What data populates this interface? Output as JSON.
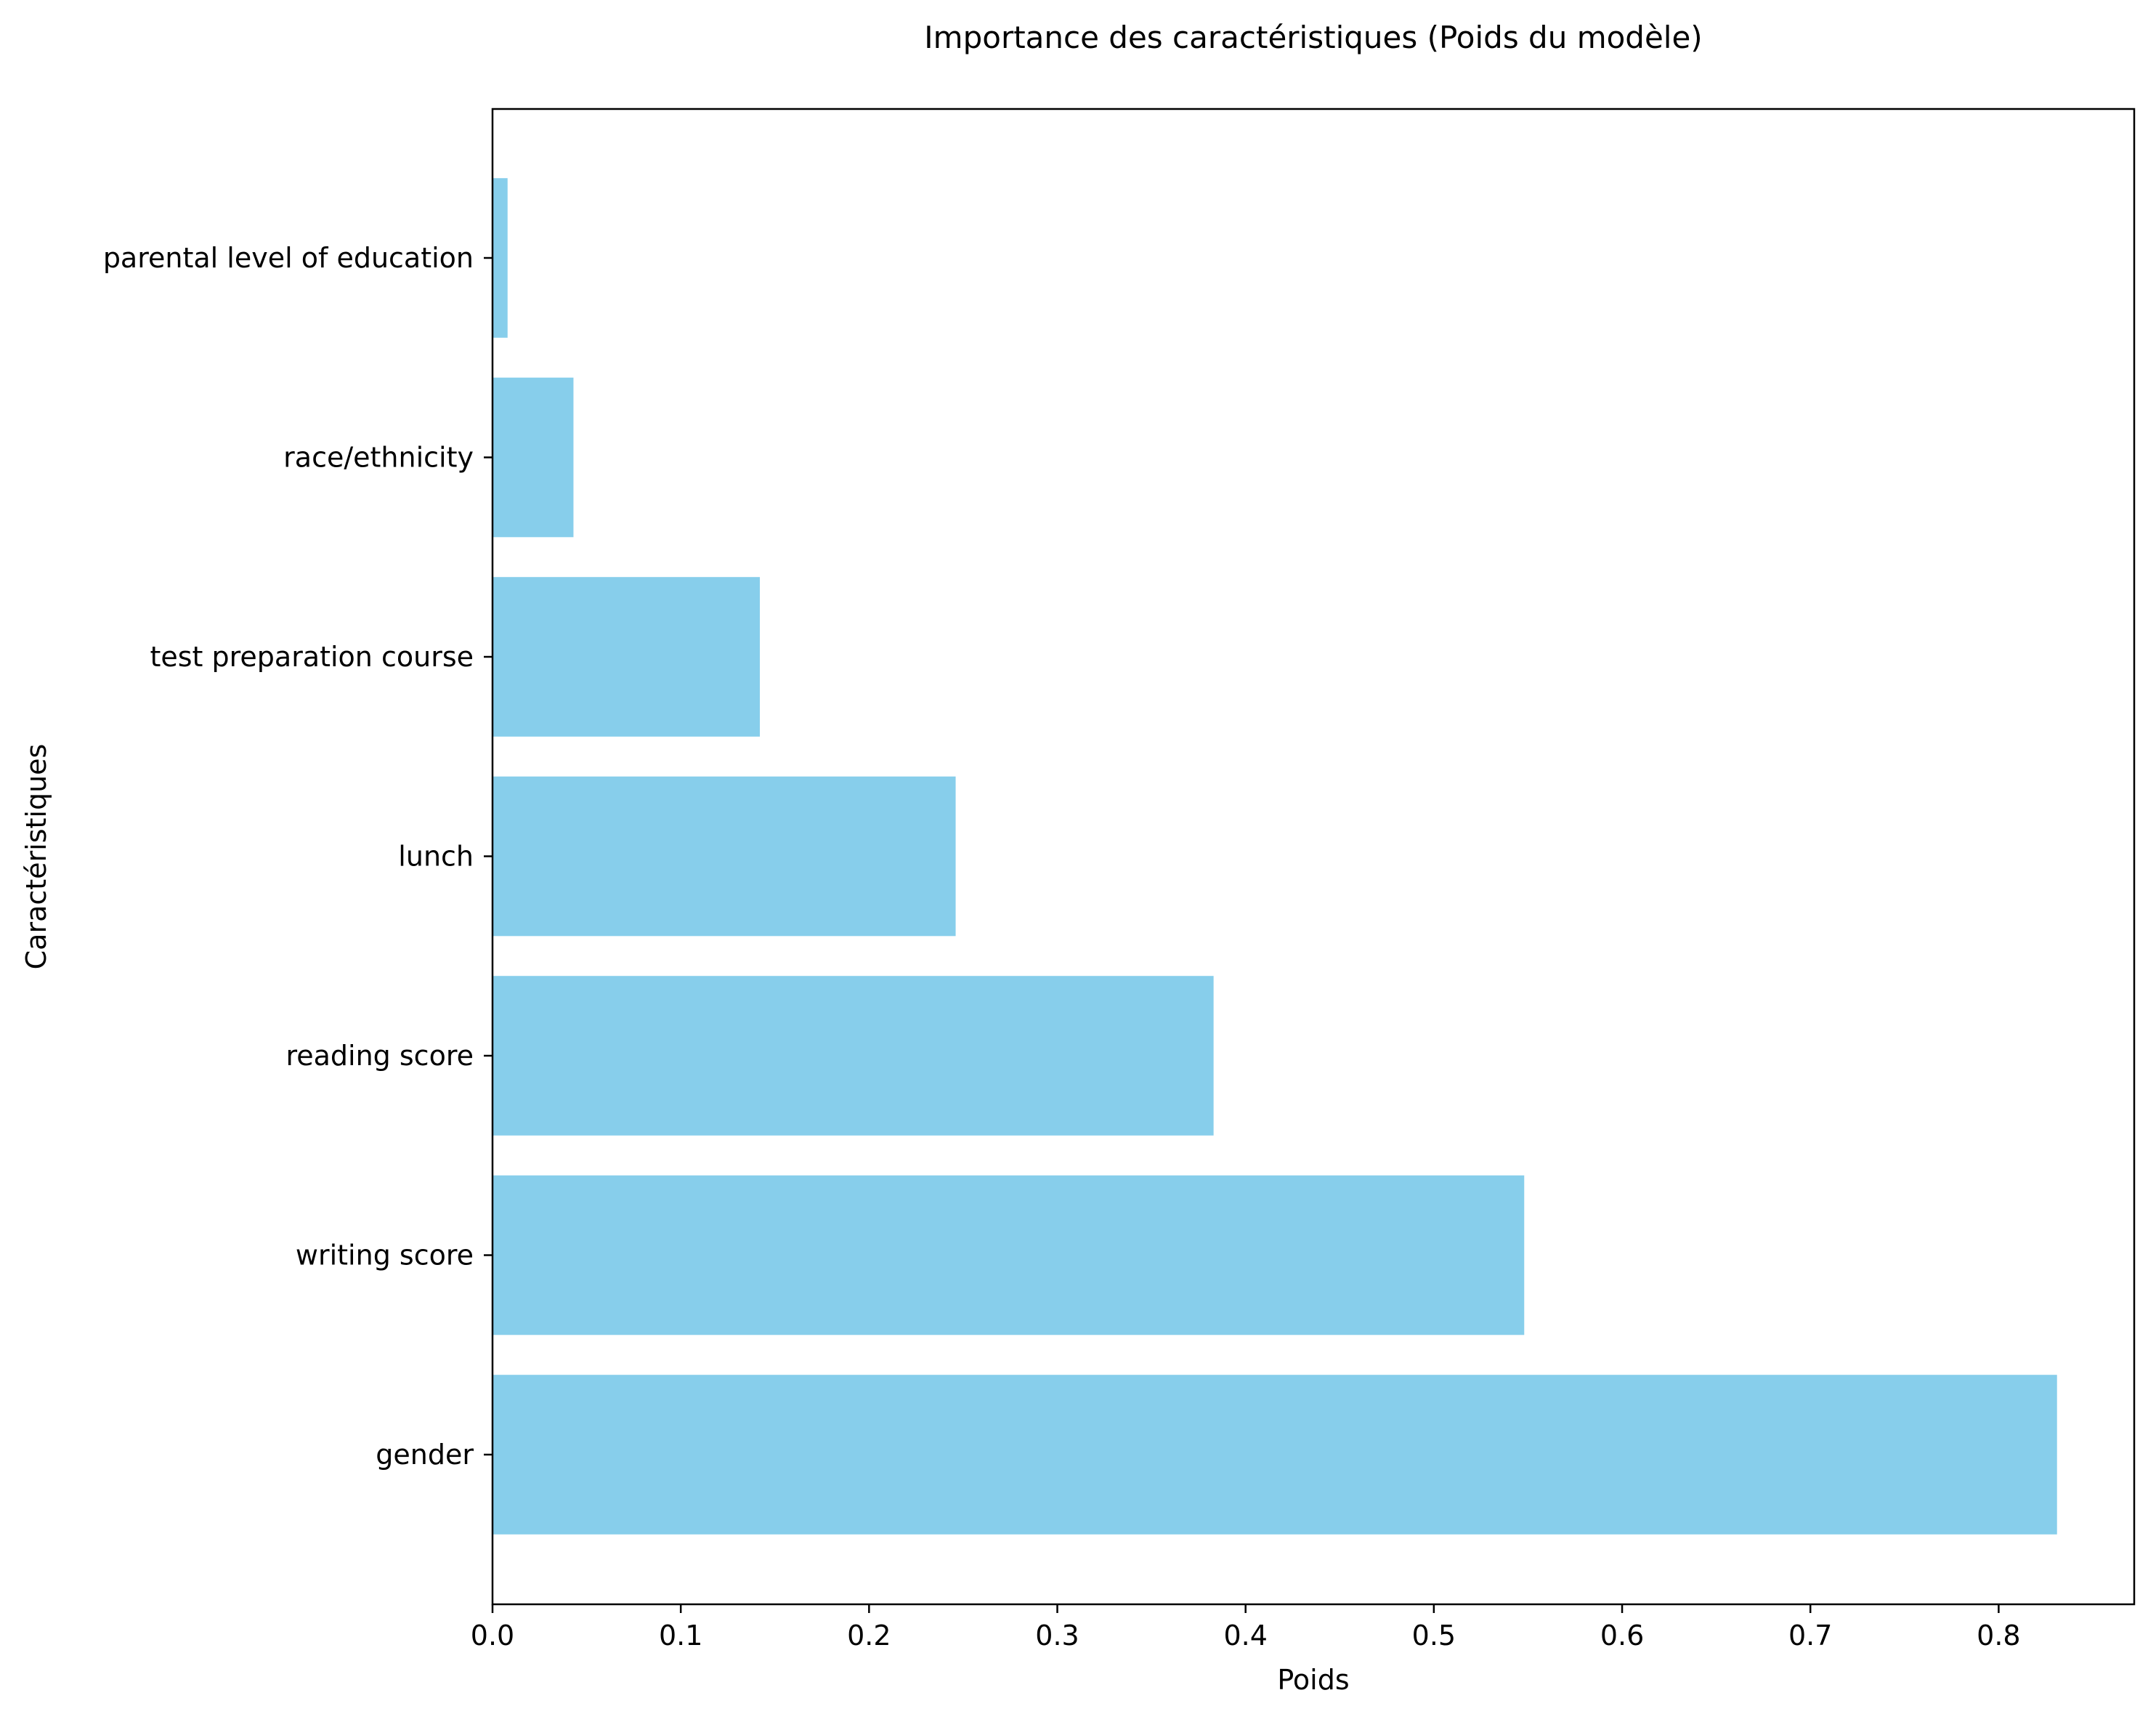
{
  "chart_data": {
    "type": "bar",
    "orientation": "horizontal",
    "title": "Importance des caractéristiques (Poids du modèle)",
    "xlabel": "Poids",
    "ylabel": "Caractéristiques",
    "categories": [
      "gender",
      "writing score",
      "reading score",
      "lunch",
      "test preparation course",
      "race/ethnicity",
      "parental level of education"
    ],
    "values": [
      0.831,
      0.548,
      0.383,
      0.246,
      0.142,
      0.043,
      0.008
    ],
    "bar_color": "#87CEEB",
    "xlim": [
      0,
      0.872
    ],
    "xticks": [
      0.0,
      0.1,
      0.2,
      0.3,
      0.4,
      0.5,
      0.6,
      0.7,
      0.8
    ],
    "xtick_labels": [
      "0.0",
      "0.1",
      "0.2",
      "0.3",
      "0.4",
      "0.5",
      "0.6",
      "0.7",
      "0.8"
    ],
    "grid": false,
    "legend": "none"
  }
}
